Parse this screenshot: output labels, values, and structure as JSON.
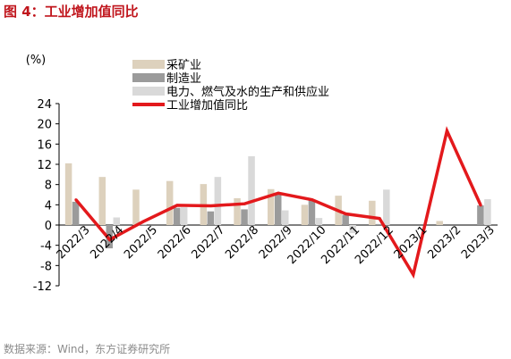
{
  "figure": {
    "title": "图 4：工业增加值同比",
    "source": "数据来源：Wind，东方证券研究所"
  },
  "colors": {
    "title": "#c0151c",
    "mining": "#ddd1bd",
    "manufacturing": "#9b9b9b",
    "utilities": "#d9d9d9",
    "industry": "#e3191c"
  },
  "chart_data": {
    "type": "bar",
    "title": "",
    "ylabel": "(%)",
    "xlabel": "",
    "ylim": [
      -12,
      24
    ],
    "yticks": [
      24,
      20,
      16,
      12,
      8,
      4,
      0,
      -4,
      -8,
      -12
    ],
    "grid": false,
    "legend_position": "top",
    "categories": [
      "2022/3",
      "2022/4",
      "2022/5",
      "2022/6",
      "2022/7",
      "2022/8",
      "2022/9",
      "2022/10",
      "2022/11",
      "2022/12",
      "2023/1",
      "2023/2",
      "2023/3"
    ],
    "series": [
      {
        "name": "采矿业",
        "type": "bar",
        "color_key": "mining",
        "values": [
          12.2,
          9.5,
          7.0,
          8.7,
          8.1,
          5.3,
          7.1,
          4.0,
          5.8,
          4.8,
          null,
          0.8,
          null
        ]
      },
      {
        "name": "制造业",
        "type": "bar",
        "color_key": "manufacturing",
        "values": [
          4.6,
          -4.6,
          0.1,
          3.4,
          2.7,
          3.1,
          6.4,
          5.0,
          2.0,
          0.2,
          null,
          null,
          3.9
        ]
      },
      {
        "name": "电力、燃气及水的生产和供应业",
        "type": "bar",
        "color_key": "utilities",
        "values": [
          null,
          1.5,
          null,
          3.5,
          9.5,
          13.6,
          2.9,
          1.4,
          -1.6,
          7.0,
          null,
          null,
          5.1
        ]
      },
      {
        "name": "工业增加值同比",
        "type": "line",
        "color_key": "industry",
        "values": [
          5.0,
          -2.9,
          0.7,
          3.9,
          3.8,
          4.2,
          6.3,
          5.0,
          2.2,
          1.3,
          -9.8,
          18.6,
          3.9
        ]
      }
    ]
  }
}
